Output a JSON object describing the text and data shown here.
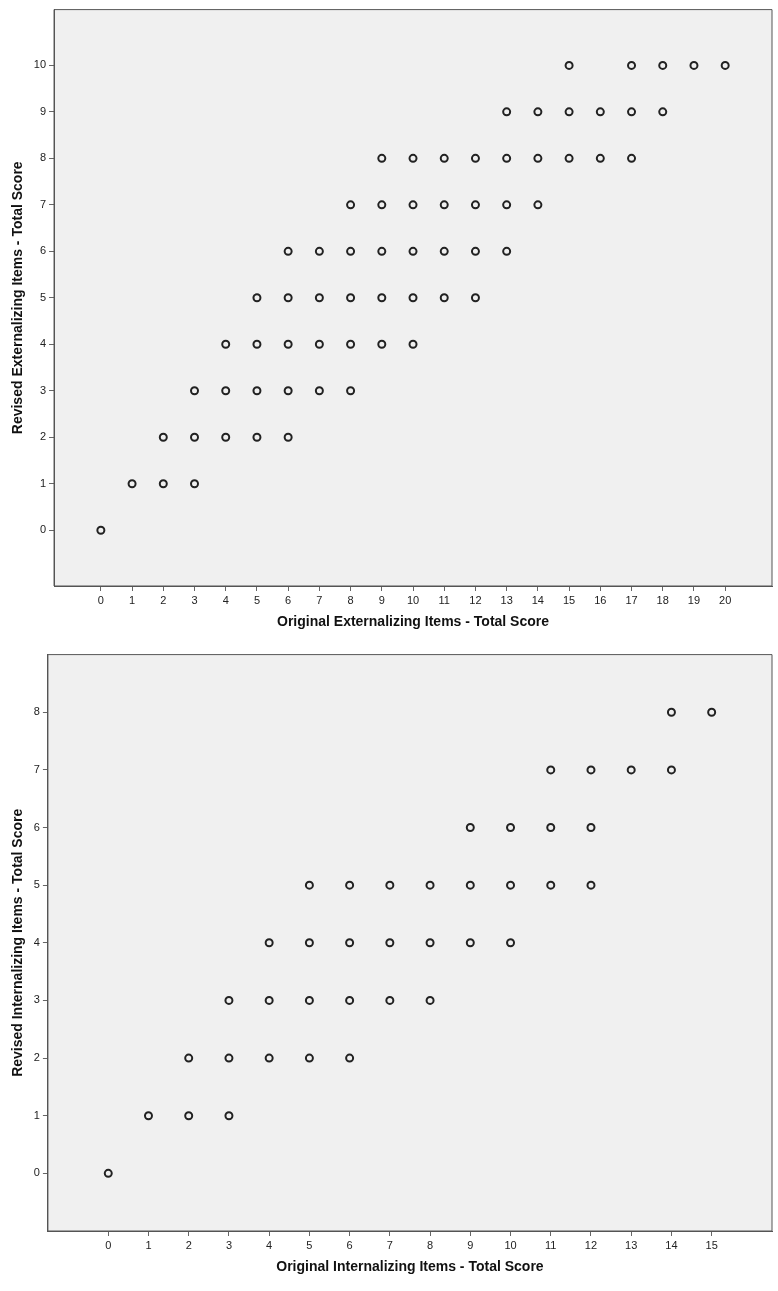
{
  "chart_data": [
    {
      "type": "scatter",
      "xlabel": "Original Externalizing Items - Total Score",
      "ylabel": "Revised Externalizing Items - Total Score",
      "marker": "circle",
      "grid": false,
      "legend": false,
      "xlim": [
        -1.5,
        21.5
      ],
      "xticks": [
        0,
        1,
        2,
        3,
        4,
        5,
        6,
        7,
        8,
        9,
        10,
        11,
        12,
        13,
        14,
        15,
        16,
        17,
        18,
        19,
        20
      ],
      "ylim": [
        -1.2,
        11.2
      ],
      "yticks": [
        0,
        1,
        2,
        3,
        4,
        5,
        6,
        7,
        8,
        9,
        10
      ],
      "series": [
        {
          "color": "#222222",
          "x": [
            15,
            17,
            18,
            19,
            20,
            13,
            14,
            15,
            16,
            17,
            18,
            9,
            10,
            11,
            12,
            13,
            14,
            15,
            16,
            17,
            8,
            9,
            10,
            11,
            12,
            13,
            14,
            6,
            7,
            8,
            9,
            10,
            11,
            12,
            13,
            5,
            6,
            7,
            8,
            9,
            10,
            11,
            12,
            4,
            5,
            6,
            7,
            8,
            9,
            10,
            3,
            4,
            5,
            6,
            7,
            8,
            2,
            3,
            4,
            5,
            6,
            1,
            2,
            3,
            0
          ],
          "values": [
            10,
            10,
            10,
            10,
            10,
            9,
            9,
            9,
            9,
            9,
            9,
            8,
            8,
            8,
            8,
            8,
            8,
            8,
            8,
            8,
            7,
            7,
            7,
            7,
            7,
            7,
            7,
            6,
            6,
            6,
            6,
            6,
            6,
            6,
            6,
            5,
            5,
            5,
            5,
            5,
            5,
            5,
            5,
            4,
            4,
            4,
            4,
            4,
            4,
            4,
            3,
            3,
            3,
            3,
            3,
            3,
            2,
            2,
            2,
            2,
            2,
            1,
            1,
            1,
            0
          ]
        }
      ]
    },
    {
      "type": "scatter",
      "xlabel": "Original Internalizing Items - Total Score",
      "ylabel": "Revised Internalizing Items - Total Score",
      "marker": "circle",
      "grid": false,
      "legend": false,
      "xlim": [
        -1.5,
        16.5
      ],
      "xticks": [
        0,
        1,
        2,
        3,
        4,
        5,
        6,
        7,
        8,
        9,
        10,
        11,
        12,
        13,
        14,
        15
      ],
      "ylim": [
        -1,
        9
      ],
      "yticks": [
        0,
        1,
        2,
        3,
        4,
        5,
        6,
        7,
        8
      ],
      "series": [
        {
          "color": "#222222",
          "x": [
            14,
            15,
            11,
            12,
            13,
            14,
            9,
            10,
            11,
            12,
            5,
            6,
            7,
            8,
            9,
            10,
            11,
            12,
            4,
            5,
            6,
            7,
            8,
            9,
            10,
            3,
            4,
            5,
            6,
            7,
            8,
            2,
            3,
            4,
            5,
            6,
            1,
            2,
            3,
            0
          ],
          "values": [
            8,
            8,
            7,
            7,
            7,
            7,
            6,
            6,
            6,
            6,
            5,
            5,
            5,
            5,
            5,
            5,
            5,
            5,
            4,
            4,
            4,
            4,
            4,
            4,
            4,
            3,
            3,
            3,
            3,
            3,
            3,
            2,
            2,
            2,
            2,
            2,
            1,
            1,
            1,
            0
          ]
        }
      ]
    }
  ]
}
